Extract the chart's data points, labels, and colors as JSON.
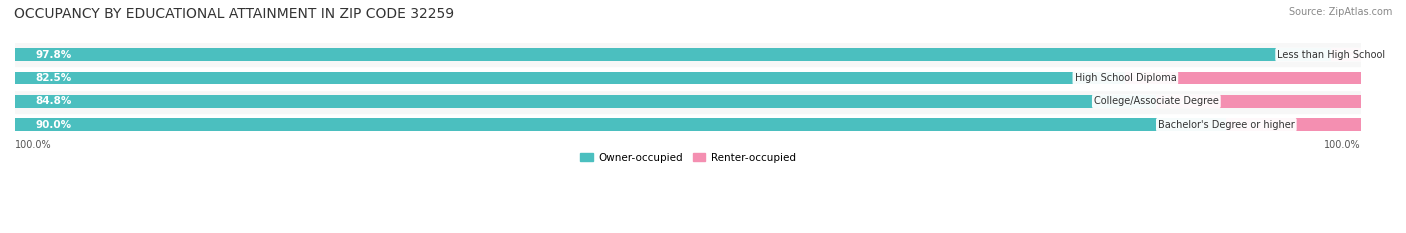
{
  "title": "OCCUPANCY BY EDUCATIONAL ATTAINMENT IN ZIP CODE 32259",
  "source": "Source: ZipAtlas.com",
  "categories": [
    "Less than High School",
    "High School Diploma",
    "College/Associate Degree",
    "Bachelor's Degree or higher"
  ],
  "owner_pct": [
    97.8,
    82.5,
    84.8,
    90.0
  ],
  "renter_pct": [
    2.2,
    17.5,
    15.2,
    10.0
  ],
  "owner_color": "#4bbfbf",
  "renter_color": "#f48fb1",
  "bar_bg_color": "#f0f0f0",
  "row_bg_colors": [
    "#ffffff",
    "#f7f7f7",
    "#ffffff",
    "#f7f7f7"
  ],
  "title_fontsize": 10,
  "label_fontsize": 7.5,
  "tick_fontsize": 7,
  "source_fontsize": 7,
  "legend_fontsize": 7.5,
  "bar_height": 0.55,
  "xlim": [
    0,
    100
  ],
  "axis_labels": [
    "100.0%",
    "100.0%"
  ],
  "background_color": "#ffffff"
}
